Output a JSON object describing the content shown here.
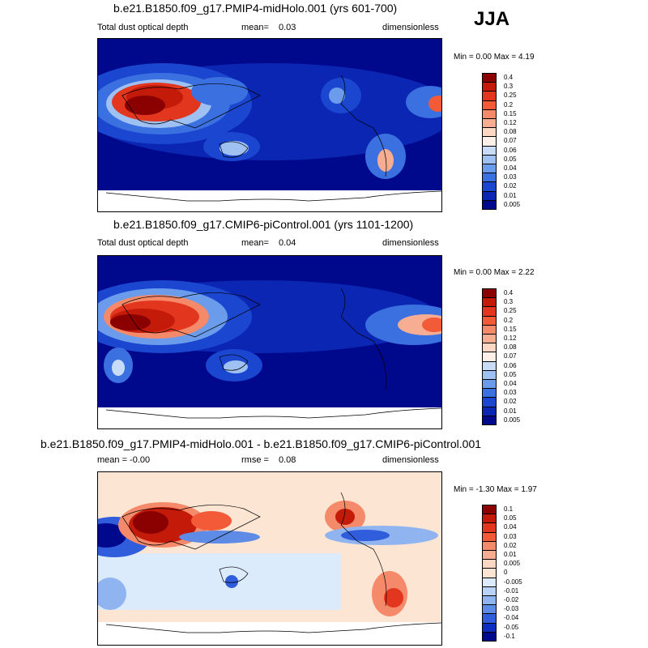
{
  "season": "JJA",
  "panels": [
    {
      "title": "b.e21.B1850.f09_g17.PMIP4-midHolo.001 (yrs 601-700)",
      "left": "Total dust optical depth",
      "mid_label": "mean=",
      "mid_value": "0.03",
      "right": "dimensionless",
      "minmax": "Min =   0.00 Max =   4.19",
      "colorbar_labels": [
        "0.4",
        "0.3",
        "0.25",
        "0.2",
        "0.15",
        "0.12",
        "0.08",
        "0.07",
        "0.06",
        "0.05",
        "0.04",
        "0.03",
        "0.02",
        "0.01",
        "0.005"
      ],
      "colorbar_colors": [
        "#8b0000",
        "#c41a0a",
        "#e2361e",
        "#f25a38",
        "#f58a6a",
        "#f7ad92",
        "#fcd7c4",
        "#fdf0e8",
        "#c9dcf7",
        "#9ec1f2",
        "#6b9cec",
        "#3a70e0",
        "#1a46d0",
        "#0a26b2",
        "#00088c"
      ]
    },
    {
      "title": "b.e21.B1850.f09_g17.CMIP6-piControl.001 (yrs 1101-1200)",
      "left": "Total dust optical depth",
      "mid_label": "mean=",
      "mid_value": "0.04",
      "right": "dimensionless",
      "minmax": "Min =   0.00 Max =   2.22",
      "colorbar_labels": [
        "0.4",
        "0.3",
        "0.25",
        "0.2",
        "0.15",
        "0.12",
        "0.08",
        "0.07",
        "0.06",
        "0.05",
        "0.04",
        "0.03",
        "0.02",
        "0.01",
        "0.005"
      ],
      "colorbar_colors": [
        "#8b0000",
        "#c41a0a",
        "#e2361e",
        "#f25a38",
        "#f58a6a",
        "#f7ad92",
        "#fcd7c4",
        "#fdf0e8",
        "#c9dcf7",
        "#9ec1f2",
        "#6b9cec",
        "#3a70e0",
        "#1a46d0",
        "#0a26b2",
        "#00088c"
      ]
    },
    {
      "title": "b.e21.B1850.f09_g17.PMIP4-midHolo.001 - b.e21.B1850.f09_g17.CMIP6-piControl.001",
      "left": "mean =  -0.00",
      "mid_label": "rmse =",
      "mid_value": "0.08",
      "right": "dimensionless",
      "minmax": "Min =  -1.30 Max =   1.97",
      "colorbar_labels": [
        "0.1",
        "0.05",
        "0.04",
        "0.03",
        "0.02",
        "0.01",
        "0.005",
        "0",
        "-0.005",
        "-0.01",
        "-0.02",
        "-0.03",
        "-0.04",
        "-0.05",
        "-0.1"
      ],
      "colorbar_colors": [
        "#8b0000",
        "#c41a0a",
        "#e2361e",
        "#f25a38",
        "#f58a6a",
        "#f7ad92",
        "#fcd7c4",
        "#fde5d4",
        "#dcebfb",
        "#b9d3f7",
        "#8fb4f0",
        "#5e8be6",
        "#2f5ddc",
        "#0f2cc0",
        "#00088c"
      ]
    }
  ]
}
